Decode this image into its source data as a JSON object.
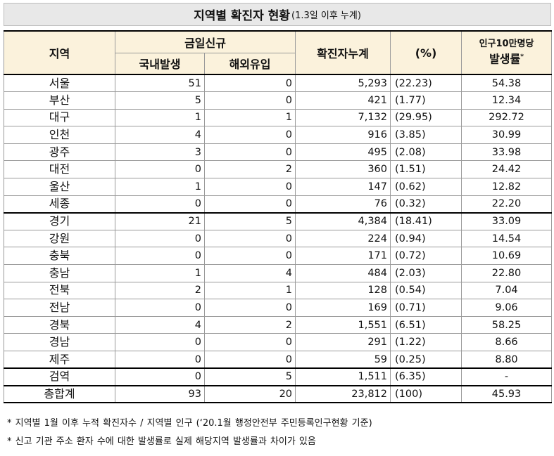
{
  "title": {
    "main": "지역별 확진자 현황",
    "sub": "(1.3일 이후 누계)"
  },
  "header": {
    "region": "지역",
    "today_new": "금일신규",
    "domestic": "국내발생",
    "overseas": "해외유입",
    "cumulative": "확진자누계",
    "percent": "(%)",
    "rate_top": "인구10만명당",
    "rate_bottom": "발생률",
    "rate_mark": "*"
  },
  "rows": [
    {
      "region": "서울",
      "domestic": "51",
      "overseas": "0",
      "cumulative": "5,293",
      "percent": "(22.23)",
      "rate": "54.38"
    },
    {
      "region": "부산",
      "domestic": "5",
      "overseas": "0",
      "cumulative": "421",
      "percent": "(1.77)",
      "rate": "12.34"
    },
    {
      "region": "대구",
      "domestic": "1",
      "overseas": "1",
      "cumulative": "7,132",
      "percent": "(29.95)",
      "rate": "292.72"
    },
    {
      "region": "인천",
      "domestic": "4",
      "overseas": "0",
      "cumulative": "916",
      "percent": "(3.85)",
      "rate": "30.99"
    },
    {
      "region": "광주",
      "domestic": "3",
      "overseas": "0",
      "cumulative": "495",
      "percent": "(2.08)",
      "rate": "33.98"
    },
    {
      "region": "대전",
      "domestic": "0",
      "overseas": "2",
      "cumulative": "360",
      "percent": "(1.51)",
      "rate": "24.42"
    },
    {
      "region": "울산",
      "domestic": "1",
      "overseas": "0",
      "cumulative": "147",
      "percent": "(0.62)",
      "rate": "12.82"
    },
    {
      "region": "세종",
      "domestic": "0",
      "overseas": "0",
      "cumulative": "76",
      "percent": "(0.32)",
      "rate": "22.20"
    },
    {
      "region": "경기",
      "domestic": "21",
      "overseas": "5",
      "cumulative": "4,384",
      "percent": "(18.41)",
      "rate": "33.09"
    },
    {
      "region": "강원",
      "domestic": "0",
      "overseas": "0",
      "cumulative": "224",
      "percent": "(0.94)",
      "rate": "14.54"
    },
    {
      "region": "충북",
      "domestic": "0",
      "overseas": "0",
      "cumulative": "171",
      "percent": "(0.72)",
      "rate": "10.69"
    },
    {
      "region": "충남",
      "domestic": "1",
      "overseas": "4",
      "cumulative": "484",
      "percent": "(2.03)",
      "rate": "22.80"
    },
    {
      "region": "전북",
      "domestic": "2",
      "overseas": "1",
      "cumulative": "128",
      "percent": "(0.54)",
      "rate": "7.04"
    },
    {
      "region": "전남",
      "domestic": "0",
      "overseas": "0",
      "cumulative": "169",
      "percent": "(0.71)",
      "rate": "9.06"
    },
    {
      "region": "경북",
      "domestic": "4",
      "overseas": "2",
      "cumulative": "1,551",
      "percent": "(6.51)",
      "rate": "58.25"
    },
    {
      "region": "경남",
      "domestic": "0",
      "overseas": "0",
      "cumulative": "291",
      "percent": "(1.22)",
      "rate": "8.66"
    },
    {
      "region": "제주",
      "domestic": "0",
      "overseas": "0",
      "cumulative": "59",
      "percent": "(0.25)",
      "rate": "8.80"
    },
    {
      "region": "검역",
      "domestic": "0",
      "overseas": "5",
      "cumulative": "1,511",
      "percent": "(6.35)",
      "rate": "-"
    }
  ],
  "total": {
    "region": "총합계",
    "domestic": "93",
    "overseas": "20",
    "cumulative": "23,812",
    "percent": "(100)",
    "rate": "45.93"
  },
  "notes": [
    "* 지역별 1월 이후 누적 확진자수 / 지역별 인구 (‘20.1월 행정안전부 주민등록인구현황 기준)",
    "* 신고 기관 주소 환자 수에 대한 발생률로 실제 해당지역 발생률과 차이가 있음"
  ]
}
